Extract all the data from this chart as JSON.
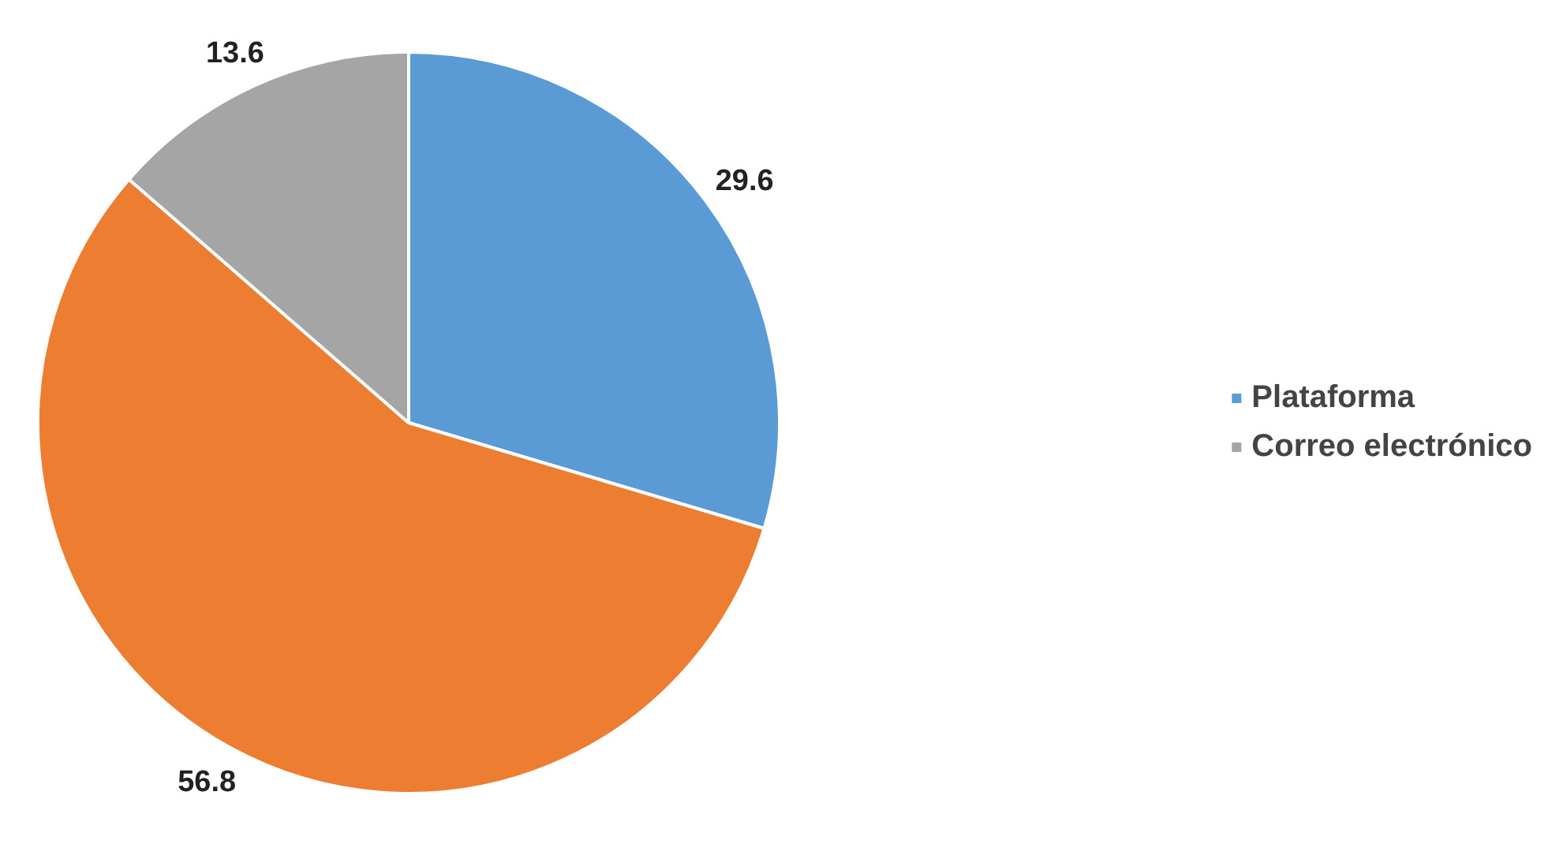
{
  "chart_data": {
    "type": "pie",
    "categories": [
      "Plataforma",
      null,
      "Correo electrónico"
    ],
    "values": [
      29.6,
      56.8,
      13.6
    ],
    "colors": [
      "#5b9bd5",
      "#ed7d31",
      "#a5a5a5"
    ],
    "data_labels": true,
    "legend": "right"
  }
}
